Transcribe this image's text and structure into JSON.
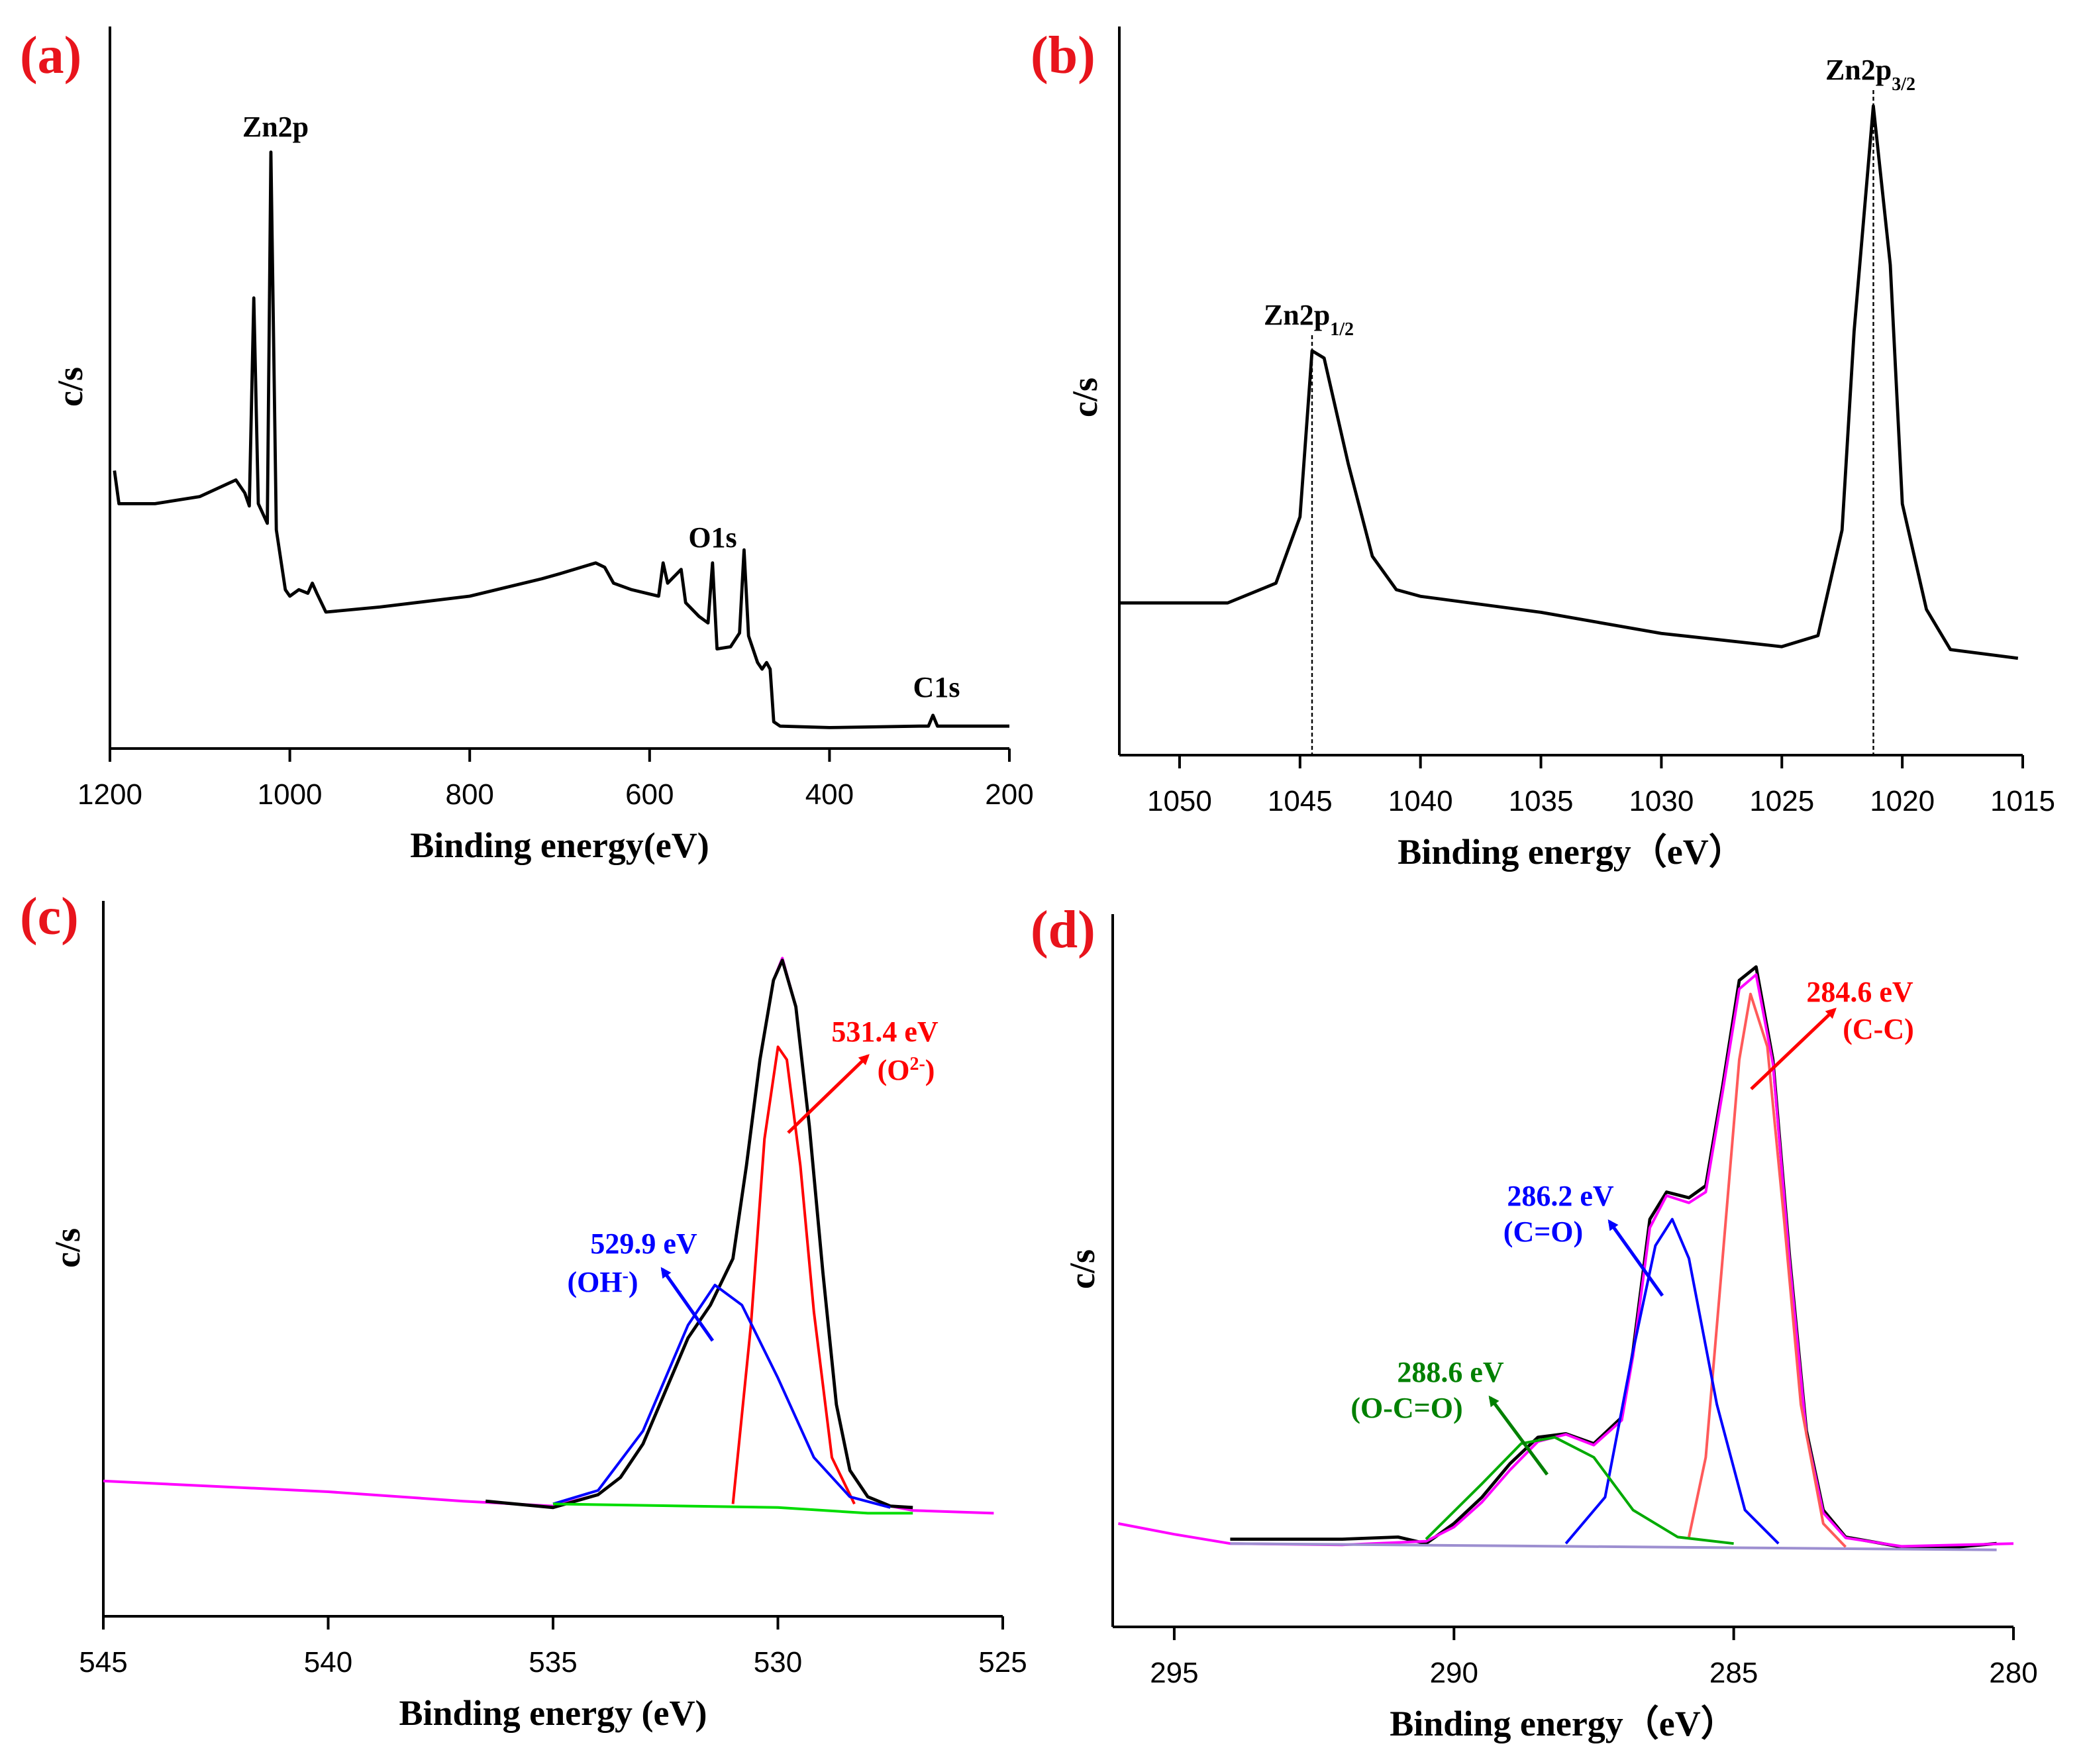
{
  "chart_data": [
    {
      "type": "line",
      "label": "(a)",
      "xlabel": "Binding energy(eV)",
      "ylabel": "c/s",
      "xlim": [
        1200,
        200
      ],
      "xticks": [
        1200,
        1000,
        800,
        600,
        400,
        200
      ],
      "ylim": [
        0,
        100
      ],
      "series": [
        {
          "color": "#000000",
          "x": [
            1195,
            1190,
            1150,
            1100,
            1060,
            1050,
            1045,
            1040,
            1035,
            1025,
            1021,
            1015,
            1005,
            1000,
            990,
            980,
            975,
            970,
            960,
            900,
            800,
            720,
            700,
            660,
            650,
            640,
            620,
            590,
            585,
            580,
            565,
            560,
            545,
            535,
            530,
            525,
            510,
            500,
            495,
            490,
            480,
            475,
            470,
            466,
            462,
            455,
            400,
            300,
            290,
            285,
            280,
            200
          ],
          "values": [
            38.5,
            33.9,
            33.9,
            34.9,
            37.2,
            35.4,
            33.6,
            62.4,
            33.9,
            31.2,
            82.6,
            30.3,
            22.0,
            21.1,
            22.0,
            21.5,
            22.9,
            21.5,
            18.9,
            19.6,
            21.1,
            23.5,
            24.2,
            25.7,
            25.1,
            22.9,
            22.0,
            21.1,
            25.7,
            22.9,
            24.8,
            20.2,
            18.3,
            17.4,
            25.7,
            13.8,
            14.1,
            16.0,
            27.5,
            15.6,
            11.9,
            11.0,
            11.9,
            11.0,
            3.7,
            3.1,
            2.9,
            3.1,
            3.1,
            4.6,
            3.1,
            3.1
          ]
        }
      ],
      "annotations": [
        {
          "text": "Zn2p",
          "color": "#000000"
        },
        {
          "text": "O1s",
          "color": "#000000"
        },
        {
          "text": "C1s",
          "color": "#000000"
        }
      ]
    },
    {
      "type": "line",
      "label": "(b)",
      "xlabel": "Binding energy（eV）",
      "ylabel": "c/s",
      "xlim": [
        1052.5,
        1015
      ],
      "xticks": [
        1050,
        1045,
        1040,
        1035,
        1030,
        1025,
        1020,
        1015
      ],
      "ylim": [
        0,
        100
      ],
      "series": [
        {
          "color": "#000000",
          "x": [
            1052.5,
            1048,
            1046,
            1045,
            1044.5,
            1044,
            1043,
            1042,
            1041,
            1040,
            1035,
            1030,
            1025,
            1023.5,
            1022.5,
            1022,
            1021.2,
            1020.5,
            1020,
            1019,
            1018,
            1015.2
          ],
          "values": [
            20.9,
            20.9,
            23.6,
            32.7,
            55.5,
            54.5,
            40.0,
            27.3,
            22.7,
            21.8,
            19.6,
            16.7,
            14.9,
            16.4,
            30.9,
            58.2,
            89.1,
            67.3,
            34.5,
            20.0,
            14.5,
            13.3
          ]
        }
      ],
      "annotations": [
        {
          "text": "Zn2p",
          "sub": "1/2",
          "color": "#000000",
          "x": 1044.5
        },
        {
          "text": "Zn2p",
          "sub": "3/2",
          "color": "#000000",
          "x": 1021.2
        }
      ]
    },
    {
      "type": "line",
      "label": "(c)",
      "xlabel": "Binding energy  (eV)",
      "ylabel": "c/s",
      "xlim": [
        545,
        525
      ],
      "xticks": [
        545,
        540,
        535,
        530,
        525
      ],
      "ylim": [
        0,
        100
      ],
      "series": [
        {
          "color": "#ff00ff",
          "x": [
            545,
            540,
            537,
            535,
            534,
            533.5,
            533,
            532.5,
            532,
            531.5,
            531,
            530.7,
            530.4,
            530.1,
            529.9,
            529.6,
            529.3,
            529,
            528.7,
            528.4,
            528,
            527.5,
            527,
            525.2
          ],
          "values": [
            18.9,
            17.4,
            16.1,
            15.4,
            17.0,
            19.4,
            24.1,
            31.5,
            38.9,
            43.5,
            50.0,
            63.0,
            77.8,
            88.9,
            92.0,
            85.2,
            68.5,
            48.1,
            29.6,
            20.4,
            16.7,
            15.4,
            14.8,
            14.4
          ]
        },
        {
          "color": "#000000",
          "x": [
            536.5,
            535,
            534,
            533.5,
            533,
            532.5,
            532,
            531.5,
            531,
            530.7,
            530.4,
            530.1,
            529.9,
            529.6,
            529.3,
            529,
            528.7,
            528.4,
            528,
            527.5,
            527
          ],
          "values": [
            16.1,
            15.2,
            17.0,
            19.4,
            24.1,
            31.5,
            38.9,
            43.5,
            50.0,
            63.0,
            77.8,
            88.9,
            91.7,
            85.2,
            68.5,
            48.1,
            29.6,
            20.4,
            16.7,
            15.4,
            15.2
          ]
        },
        {
          "color": "#ff0000",
          "x": [
            531,
            530.6,
            530.3,
            530,
            529.8,
            529.5,
            529.2,
            528.8,
            528.3
          ],
          "values": [
            15.7,
            40.7,
            66.7,
            79.6,
            77.8,
            63.0,
            42.6,
            22.2,
            15.7
          ]
        },
        {
          "color": "#0000ff",
          "x": [
            535,
            534,
            533,
            532,
            531.4,
            530.8,
            530,
            529.2,
            528.4,
            527.5
          ],
          "values": [
            15.7,
            17.6,
            25.9,
            40.7,
            46.3,
            43.5,
            33.3,
            22.2,
            16.7,
            15.2
          ]
        },
        {
          "color": "#00dd00",
          "x": [
            535,
            532,
            530,
            528,
            527
          ],
          "values": [
            15.7,
            15.4,
            15.2,
            14.4,
            14.4
          ]
        }
      ],
      "annotations": [
        {
          "text": "531.4 eV",
          "color": "#ff0000"
        },
        {
          "text": "(O",
          "sup": "2-",
          "after": ")",
          "color": "#ff0000"
        },
        {
          "text": "529.9 eV",
          "color": "#0000ff"
        },
        {
          "text": "(OH",
          "sup": "-",
          "after": ")",
          "color": "#0000ff"
        }
      ]
    },
    {
      "type": "line",
      "label": "(d)",
      "xlabel": "Binding energy（eV）",
      "ylabel": "c/s",
      "xlim": [
        296.1,
        280
      ],
      "xticks": [
        295,
        290,
        285,
        280
      ],
      "ylim": [
        0,
        100
      ],
      "series": [
        {
          "color": "#000000",
          "x": [
            294,
            292,
            291,
            290.5,
            290,
            289.5,
            289,
            288.5,
            288,
            287.5,
            287,
            286.8,
            286.5,
            286.2,
            285.8,
            285.5,
            285.2,
            284.9,
            284.6,
            284.3,
            284,
            283.7,
            283.4,
            283,
            282,
            281,
            280.3
          ],
          "values": [
            12.3,
            12.3,
            12.6,
            11.7,
            14.5,
            18.2,
            22.9,
            26.6,
            27.1,
            25.7,
            29.4,
            38.7,
            57.2,
            61.0,
            60.2,
            61.9,
            75.8,
            90.7,
            92.6,
            79.6,
            51.7,
            27.5,
            16.4,
            12.6,
            11.2,
            11.2,
            11.7
          ]
        },
        {
          "color": "#ff00ff",
          "x": [
            296,
            295,
            294,
            292,
            290.5,
            290,
            289.5,
            289,
            288.5,
            288,
            287.5,
            287,
            286.8,
            286.5,
            286.2,
            285.8,
            285.5,
            285.2,
            284.9,
            284.6,
            284.3,
            284,
            283.7,
            283.4,
            283,
            282,
            280
          ],
          "values": [
            14.5,
            13.0,
            11.7,
            11.5,
            12.0,
            14.0,
            17.5,
            22.0,
            26.0,
            27.0,
            25.5,
            29.0,
            38.0,
            56.0,
            60.5,
            59.5,
            61.0,
            75.0,
            89.5,
            91.5,
            79.0,
            51.0,
            27.0,
            16.0,
            12.5,
            11.3,
            11.7
          ]
        },
        {
          "color": "#ff5a5a",
          "x": [
            285.8,
            285.5,
            285.2,
            284.9,
            284.7,
            284.4,
            284.1,
            283.8,
            283.4,
            283
          ],
          "values": [
            12.6,
            23.8,
            51.7,
            79.6,
            88.8,
            81.4,
            57.2,
            31.2,
            14.5,
            11.2
          ]
        },
        {
          "color": "#0000ff",
          "x": [
            288,
            287.3,
            286.8,
            286.4,
            286.1,
            285.8,
            285.3,
            284.8,
            284.2
          ],
          "values": [
            11.7,
            18.2,
            38.7,
            53.5,
            57.2,
            51.7,
            31.2,
            16.4,
            11.7
          ]
        },
        {
          "color": "#00aa00",
          "x": [
            290.5,
            289.5,
            288.8,
            288.2,
            287.5,
            286.8,
            286,
            285
          ],
          "values": [
            12.3,
            20.1,
            25.7,
            26.6,
            23.8,
            16.4,
            12.6,
            11.7
          ]
        },
        {
          "color": "#9d8fd0",
          "x": [
            294,
            280.3
          ],
          "values": [
            11.7,
            10.8
          ]
        }
      ],
      "annotations": [
        {
          "text": "284.6 eV",
          "color": "#ff0000"
        },
        {
          "text": "(C-C)",
          "color": "#ff0000"
        },
        {
          "text": "286.2 eV",
          "color": "#0000ff"
        },
        {
          "text": "(C=O)",
          "color": "#0000ff"
        },
        {
          "text": "288.6 eV",
          "color": "#008000"
        },
        {
          "text": "(O-C=O)",
          "color": "#008000"
        }
      ]
    }
  ]
}
